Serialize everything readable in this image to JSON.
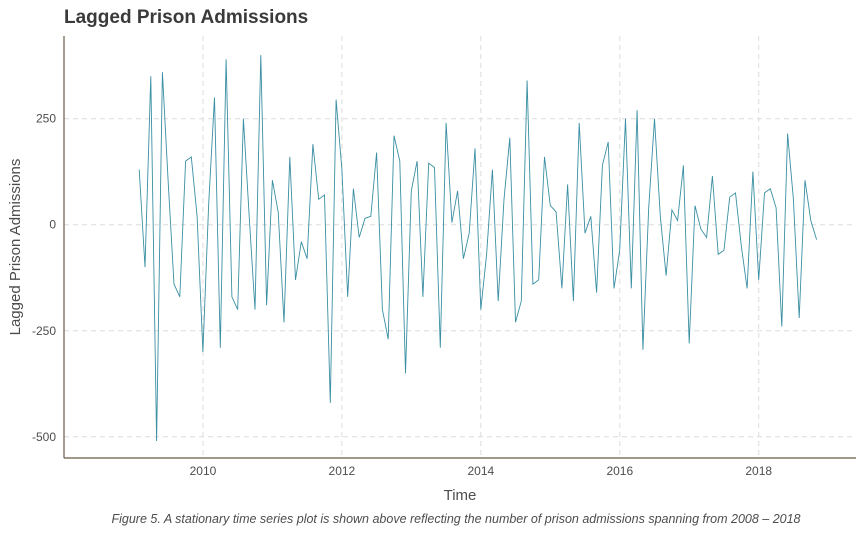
{
  "chart_data": {
    "type": "line",
    "title": "Lagged Prison Admissions",
    "xlabel": "Time",
    "ylabel": "Lagged Prison Admissions",
    "caption": "Figure 5. A stationary time series plot is shown above reflecting the number of prison admissions spanning from 2008 – 2018",
    "xlim": [
      2008.0,
      2019.4
    ],
    "ylim": [
      -550,
      445
    ],
    "x_ticks": [
      2010,
      2012,
      2014,
      2016,
      2018
    ],
    "x_tick_labels": [
      "2010",
      "2012",
      "2014",
      "2016",
      "2018"
    ],
    "y_ticks": [
      250,
      0,
      -250,
      -500
    ],
    "y_tick_labels": [
      "250",
      "0",
      "-250",
      "-500"
    ],
    "grid": true,
    "legend": "none",
    "color": "#3a8fa3",
    "series": [
      {
        "x_start": 2009.083,
        "x_step": 0.08333,
        "values": [
          130,
          -100,
          350,
          -510,
          360,
          100,
          -140,
          -170,
          150,
          160,
          20,
          -300,
          50,
          300,
          -290,
          390,
          -170,
          -200,
          250,
          20,
          -200,
          400,
          -190,
          105,
          30,
          -230,
          160,
          -130,
          -40,
          -80,
          190,
          60,
          70,
          -420,
          295,
          130,
          -170,
          85,
          -30,
          15,
          20,
          170,
          -200,
          -270,
          210,
          150,
          -350,
          80,
          150,
          -170,
          145,
          135,
          -290,
          240,
          5,
          80,
          -80,
          -20,
          180,
          -200,
          -70,
          130,
          -180,
          60,
          205,
          -230,
          -180,
          340,
          -140,
          -130,
          160,
          45,
          30,
          -150,
          95,
          -180,
          240,
          -20,
          20,
          -160,
          140,
          195,
          -150,
          -60,
          250,
          -150,
          270,
          -295,
          40,
          250,
          20,
          -120,
          35,
          10,
          140,
          -280,
          45,
          -10,
          -30,
          115,
          -70,
          -60,
          65,
          75,
          -50,
          -150,
          125,
          -130,
          75,
          85,
          40,
          -240,
          215,
          60,
          -220,
          105,
          10,
          -35
        ]
      }
    ]
  }
}
